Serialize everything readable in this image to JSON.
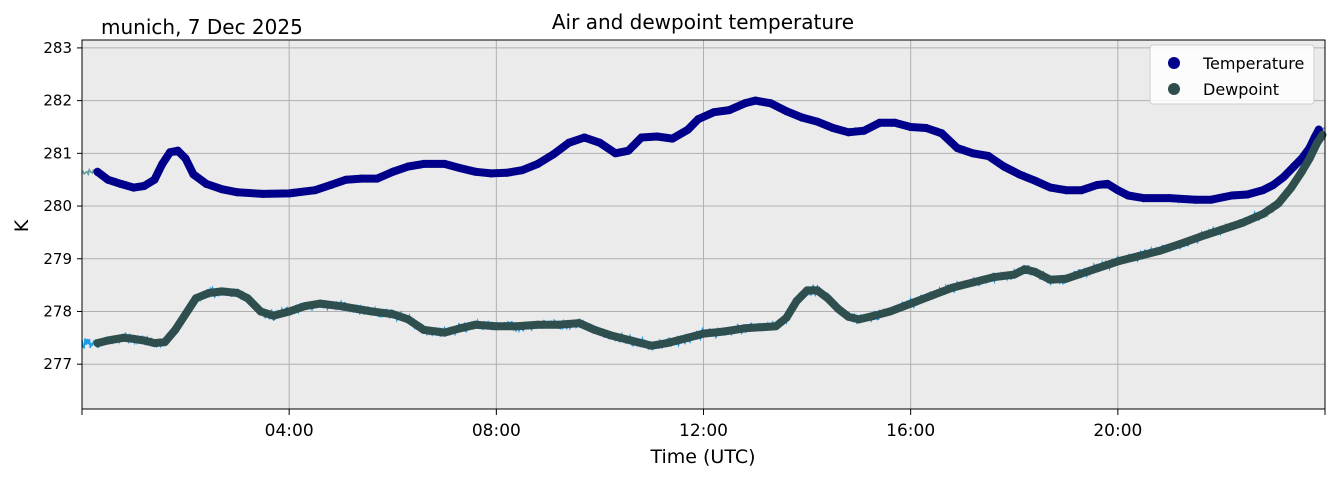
{
  "page": {
    "location_date": "munich, 7 Dec 2025"
  },
  "chart_data": {
    "type": "line",
    "title": "Air and dewpoint temperature",
    "xlabel": "Time (UTC)",
    "ylabel": "K",
    "xlim_hours": [
      0,
      24
    ],
    "ylim": [
      276.15,
      283.15
    ],
    "x_ticks": [
      {
        "hour": 4,
        "label": "04:00"
      },
      {
        "hour": 8,
        "label": "08:00"
      },
      {
        "hour": 12,
        "label": "12:00"
      },
      {
        "hour": 16,
        "label": "16:00"
      },
      {
        "hour": 20,
        "label": "20:00"
      }
    ],
    "y_ticks": [
      {
        "value": 277,
        "label": "277"
      },
      {
        "value": 278,
        "label": "278"
      },
      {
        "value": 279,
        "label": "279"
      },
      {
        "value": 280,
        "label": "280"
      },
      {
        "value": 281,
        "label": "281"
      },
      {
        "value": 282,
        "label": "282"
      },
      {
        "value": 283,
        "label": "283"
      }
    ],
    "grid": true,
    "legend_position": "top-right",
    "series": [
      {
        "name": "Temperature",
        "color": "#00008b",
        "raw_color": "#5f9ea0",
        "points": [
          [
            0.3,
            280.65
          ],
          [
            0.5,
            280.5
          ],
          [
            0.75,
            280.42
          ],
          [
            1.0,
            280.35
          ],
          [
            1.2,
            280.38
          ],
          [
            1.4,
            280.5
          ],
          [
            1.55,
            280.8
          ],
          [
            1.7,
            281.02
          ],
          [
            1.85,
            281.05
          ],
          [
            2.0,
            280.9
          ],
          [
            2.15,
            280.6
          ],
          [
            2.4,
            280.42
          ],
          [
            2.7,
            280.32
          ],
          [
            3.0,
            280.26
          ],
          [
            3.5,
            280.23
          ],
          [
            4.0,
            280.24
          ],
          [
            4.5,
            280.3
          ],
          [
            4.8,
            280.4
          ],
          [
            5.1,
            280.5
          ],
          [
            5.4,
            280.52
          ],
          [
            5.7,
            280.52
          ],
          [
            6.0,
            280.65
          ],
          [
            6.3,
            280.75
          ],
          [
            6.6,
            280.8
          ],
          [
            7.0,
            280.8
          ],
          [
            7.3,
            280.72
          ],
          [
            7.6,
            280.65
          ],
          [
            7.9,
            280.62
          ],
          [
            8.2,
            280.63
          ],
          [
            8.5,
            280.68
          ],
          [
            8.8,
            280.8
          ],
          [
            9.1,
            280.98
          ],
          [
            9.4,
            281.2
          ],
          [
            9.7,
            281.3
          ],
          [
            10.0,
            281.2
          ],
          [
            10.3,
            281.0
          ],
          [
            10.55,
            281.05
          ],
          [
            10.8,
            281.3
          ],
          [
            11.1,
            281.32
          ],
          [
            11.4,
            281.28
          ],
          [
            11.7,
            281.45
          ],
          [
            11.9,
            281.65
          ],
          [
            12.2,
            281.78
          ],
          [
            12.5,
            281.82
          ],
          [
            12.8,
            281.95
          ],
          [
            13.0,
            282.0
          ],
          [
            13.3,
            281.95
          ],
          [
            13.6,
            281.8
          ],
          [
            13.9,
            281.68
          ],
          [
            14.2,
            281.6
          ],
          [
            14.5,
            281.48
          ],
          [
            14.8,
            281.4
          ],
          [
            15.1,
            281.43
          ],
          [
            15.4,
            281.58
          ],
          [
            15.7,
            281.58
          ],
          [
            16.0,
            281.5
          ],
          [
            16.3,
            281.48
          ],
          [
            16.6,
            281.38
          ],
          [
            16.9,
            281.1
          ],
          [
            17.2,
            281.0
          ],
          [
            17.5,
            280.95
          ],
          [
            17.8,
            280.75
          ],
          [
            18.1,
            280.6
          ],
          [
            18.4,
            280.48
          ],
          [
            18.7,
            280.35
          ],
          [
            19.0,
            280.3
          ],
          [
            19.3,
            280.3
          ],
          [
            19.6,
            280.4
          ],
          [
            19.8,
            280.42
          ],
          [
            20.0,
            280.3
          ],
          [
            20.2,
            280.2
          ],
          [
            20.5,
            280.15
          ],
          [
            21.0,
            280.15
          ],
          [
            21.5,
            280.12
          ],
          [
            21.8,
            280.12
          ],
          [
            22.2,
            280.2
          ],
          [
            22.5,
            280.22
          ],
          [
            22.8,
            280.3
          ],
          [
            23.0,
            280.4
          ],
          [
            23.2,
            280.55
          ],
          [
            23.4,
            280.75
          ],
          [
            23.55,
            280.9
          ],
          [
            23.7,
            281.1
          ],
          [
            23.8,
            281.3
          ],
          [
            23.88,
            281.45
          ]
        ]
      },
      {
        "name": "Dewpoint",
        "color": "#2f4f4f",
        "raw_color": "#1e9be8",
        "points": [
          [
            0.3,
            277.4
          ],
          [
            0.5,
            277.45
          ],
          [
            0.8,
            277.5
          ],
          [
            1.0,
            277.48
          ],
          [
            1.2,
            277.45
          ],
          [
            1.4,
            277.4
          ],
          [
            1.6,
            277.42
          ],
          [
            1.8,
            277.65
          ],
          [
            2.0,
            277.95
          ],
          [
            2.2,
            278.25
          ],
          [
            2.45,
            278.35
          ],
          [
            2.7,
            278.38
          ],
          [
            3.0,
            278.35
          ],
          [
            3.2,
            278.25
          ],
          [
            3.45,
            278.0
          ],
          [
            3.7,
            277.92
          ],
          [
            4.0,
            278.0
          ],
          [
            4.3,
            278.1
          ],
          [
            4.6,
            278.15
          ],
          [
            5.0,
            278.1
          ],
          [
            5.3,
            278.05
          ],
          [
            5.6,
            278.0
          ],
          [
            6.0,
            277.95
          ],
          [
            6.3,
            277.85
          ],
          [
            6.6,
            277.65
          ],
          [
            7.0,
            277.6
          ],
          [
            7.3,
            277.68
          ],
          [
            7.6,
            277.75
          ],
          [
            8.0,
            277.72
          ],
          [
            8.4,
            277.72
          ],
          [
            8.8,
            277.75
          ],
          [
            9.2,
            277.75
          ],
          [
            9.6,
            277.78
          ],
          [
            9.9,
            277.65
          ],
          [
            10.2,
            277.55
          ],
          [
            10.6,
            277.45
          ],
          [
            11.0,
            277.35
          ],
          [
            11.3,
            277.4
          ],
          [
            11.7,
            277.5
          ],
          [
            12.0,
            277.58
          ],
          [
            12.4,
            277.62
          ],
          [
            12.8,
            277.68
          ],
          [
            13.1,
            277.7
          ],
          [
            13.4,
            277.72
          ],
          [
            13.6,
            277.88
          ],
          [
            13.8,
            278.2
          ],
          [
            14.0,
            278.4
          ],
          [
            14.2,
            278.4
          ],
          [
            14.4,
            278.25
          ],
          [
            14.6,
            278.05
          ],
          [
            14.8,
            277.9
          ],
          [
            15.0,
            277.85
          ],
          [
            15.3,
            277.92
          ],
          [
            15.6,
            278.0
          ],
          [
            16.0,
            278.15
          ],
          [
            16.4,
            278.3
          ],
          [
            16.8,
            278.45
          ],
          [
            17.2,
            278.55
          ],
          [
            17.6,
            278.65
          ],
          [
            18.0,
            278.7
          ],
          [
            18.2,
            278.8
          ],
          [
            18.4,
            278.75
          ],
          [
            18.7,
            278.6
          ],
          [
            19.0,
            278.62
          ],
          [
            19.3,
            278.72
          ],
          [
            19.6,
            278.82
          ],
          [
            20.0,
            278.95
          ],
          [
            20.4,
            279.05
          ],
          [
            20.8,
            279.15
          ],
          [
            21.2,
            279.28
          ],
          [
            21.6,
            279.42
          ],
          [
            22.0,
            279.55
          ],
          [
            22.4,
            279.68
          ],
          [
            22.8,
            279.85
          ],
          [
            23.1,
            280.05
          ],
          [
            23.35,
            280.35
          ],
          [
            23.55,
            280.65
          ],
          [
            23.7,
            280.9
          ],
          [
            23.85,
            281.2
          ],
          [
            23.95,
            281.35
          ]
        ]
      }
    ]
  }
}
